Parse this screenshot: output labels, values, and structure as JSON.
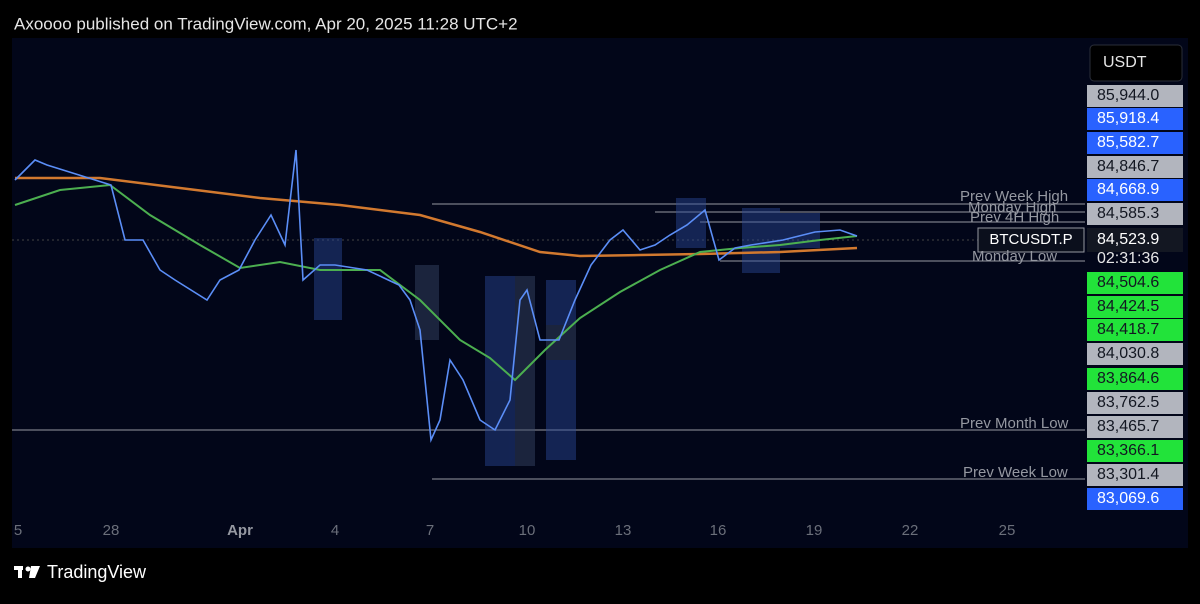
{
  "header": {
    "title": "Axoooo published on TradingView.com, Apr 20, 2025 11:28 UTC+2"
  },
  "currency": "USDT",
  "price_labels": [
    {
      "text": "85,944.0",
      "style": "gray"
    },
    {
      "text": "85,918.4",
      "style": "blue"
    },
    {
      "text": "85,582.7",
      "style": "blue"
    },
    {
      "text": "84,846.7",
      "style": "gray"
    },
    {
      "text": "84,668.9",
      "style": "blue"
    },
    {
      "text": "84,585.3",
      "style": "gray"
    },
    {
      "text": "84,504.6",
      "style": "green"
    },
    {
      "text": "84,424.5",
      "style": "green"
    },
    {
      "text": "84,418.7",
      "style": "green"
    },
    {
      "text": "84,030.8",
      "style": "gray"
    },
    {
      "text": "83,864.6",
      "style": "green"
    },
    {
      "text": "83,762.5",
      "style": "gray"
    },
    {
      "text": "83,465.7",
      "style": "gray"
    },
    {
      "text": "83,366.1",
      "style": "green"
    },
    {
      "text": "83,301.4",
      "style": "gray"
    },
    {
      "text": "83,069.6",
      "style": "blue"
    }
  ],
  "current": {
    "symbol": "BTCUSDT.P",
    "price": "84,523.9",
    "countdown": "02:31:36"
  },
  "level_labels": [
    "Prev Week High",
    "Monday High",
    "Prev 4H High",
    "Monday Low",
    "Prev Month Low",
    "Prev Week Low"
  ],
  "date_labels": [
    "5",
    "28",
    "Apr",
    "4",
    "7",
    "10",
    "13",
    "16",
    "19",
    "22",
    "25"
  ],
  "footer": {
    "brand": "TradingView"
  }
}
